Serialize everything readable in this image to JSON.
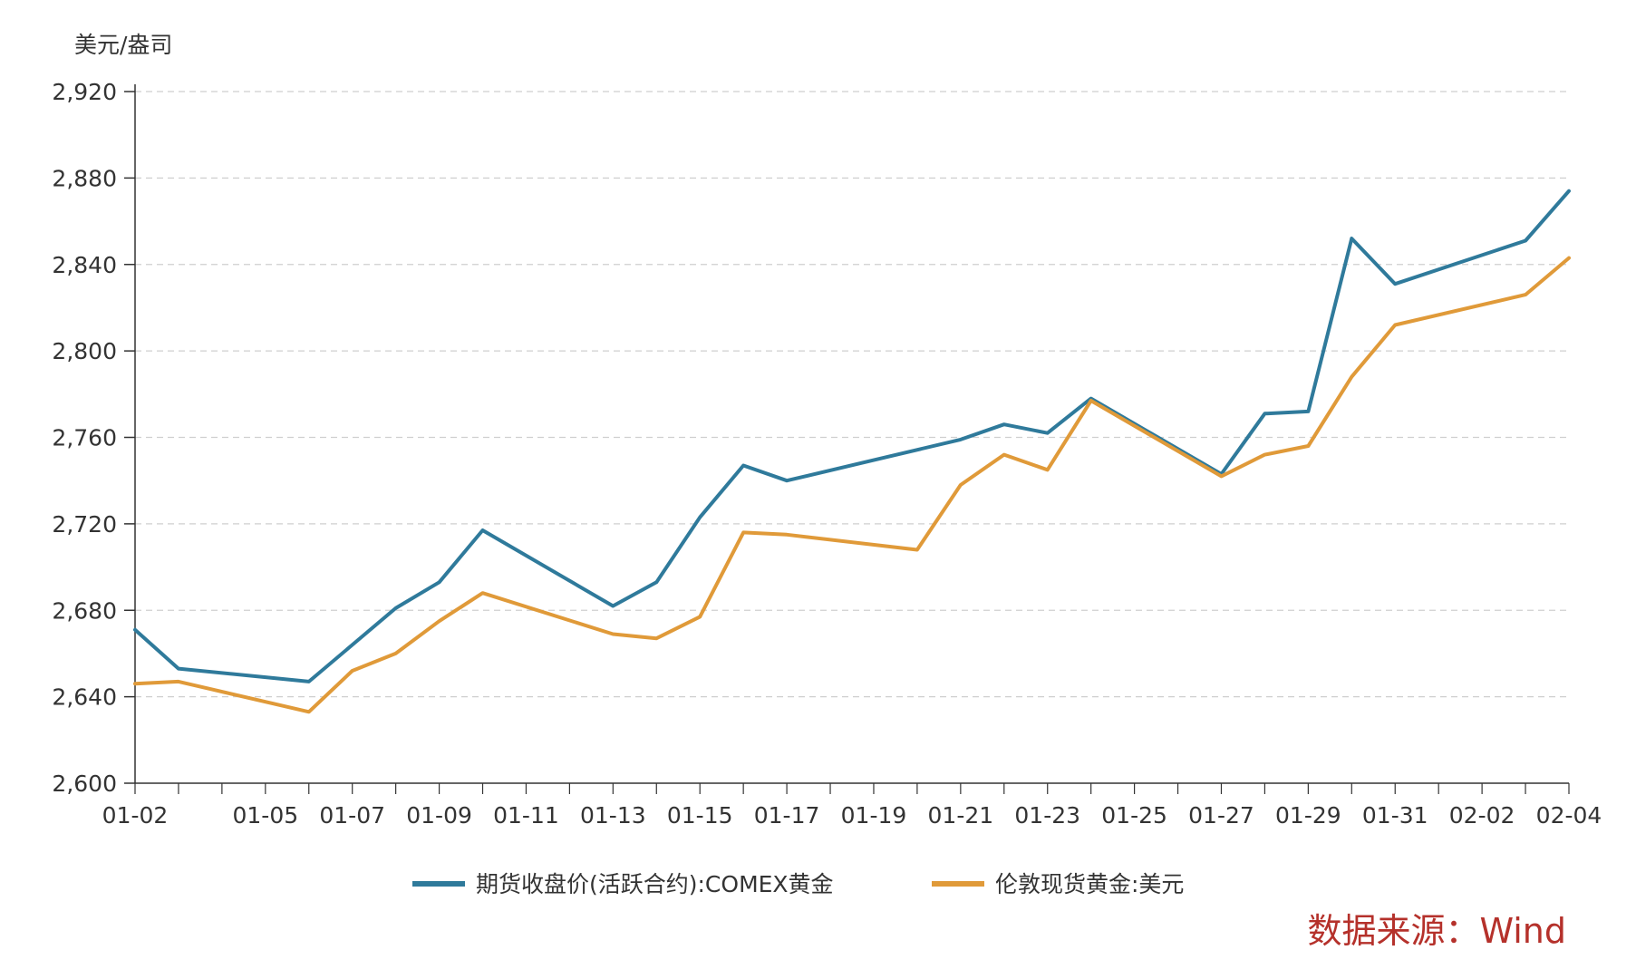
{
  "chart_data": {
    "type": "line",
    "unit_label": "美元/盎司",
    "ylim": [
      2600,
      2920
    ],
    "yticks": [
      2600,
      2640,
      2680,
      2720,
      2760,
      2800,
      2840,
      2880,
      2920
    ],
    "ytick_labels": [
      "2,600",
      "2,640",
      "2,680",
      "2,720",
      "2,760",
      "2,800",
      "2,840",
      "2,880",
      "2,920"
    ],
    "xlim": [
      "01-02",
      "02-04"
    ],
    "xticks": [
      "01-02",
      "01-05",
      "01-07",
      "01-09",
      "01-11",
      "01-13",
      "01-15",
      "01-17",
      "01-19",
      "01-21",
      "01-23",
      "01-25",
      "01-27",
      "01-29",
      "01-31",
      "02-02",
      "02-04"
    ],
    "grid": "horizontal-dashed",
    "legend_position": "bottom-center",
    "series": [
      {
        "name": "期货收盘价(活跃合约):COMEX黄金",
        "color": "#2f7a9b",
        "points": [
          [
            "01-02",
            2671
          ],
          [
            "01-03",
            2653
          ],
          [
            "01-06",
            2647
          ],
          [
            "01-07",
            2664
          ],
          [
            "01-08",
            2681
          ],
          [
            "01-09",
            2693
          ],
          [
            "01-10",
            2717
          ],
          [
            "01-13",
            2682
          ],
          [
            "01-14",
            2693
          ],
          [
            "01-15",
            2723
          ],
          [
            "01-16",
            2747
          ],
          [
            "01-17",
            2740
          ],
          [
            "01-21",
            2759
          ],
          [
            "01-22",
            2766
          ],
          [
            "01-23",
            2762
          ],
          [
            "01-24",
            2778
          ],
          [
            "01-27",
            2743
          ],
          [
            "01-28",
            2771
          ],
          [
            "01-29",
            2772
          ],
          [
            "01-30",
            2852
          ],
          [
            "01-31",
            2831
          ],
          [
            "02-03",
            2851
          ],
          [
            "02-04",
            2874
          ]
        ]
      },
      {
        "name": "伦敦现货黄金:美元",
        "color": "#e09a39",
        "points": [
          [
            "01-02",
            2646
          ],
          [
            "01-03",
            2647
          ],
          [
            "01-06",
            2633
          ],
          [
            "01-07",
            2652
          ],
          [
            "01-08",
            2660
          ],
          [
            "01-09",
            2675
          ],
          [
            "01-10",
            2688
          ],
          [
            "01-13",
            2669
          ],
          [
            "01-14",
            2667
          ],
          [
            "01-15",
            2677
          ],
          [
            "01-16",
            2716
          ],
          [
            "01-17",
            2715
          ],
          [
            "01-20",
            2708
          ],
          [
            "01-21",
            2738
          ],
          [
            "01-22",
            2752
          ],
          [
            "01-23",
            2745
          ],
          [
            "01-24",
            2777
          ],
          [
            "01-27",
            2742
          ],
          [
            "01-28",
            2752
          ],
          [
            "01-29",
            2756
          ],
          [
            "01-30",
            2788
          ],
          [
            "01-31",
            2812
          ],
          [
            "02-03",
            2826
          ],
          [
            "02-04",
            2843
          ]
        ]
      }
    ]
  },
  "source_note": "数据来源：Wind"
}
